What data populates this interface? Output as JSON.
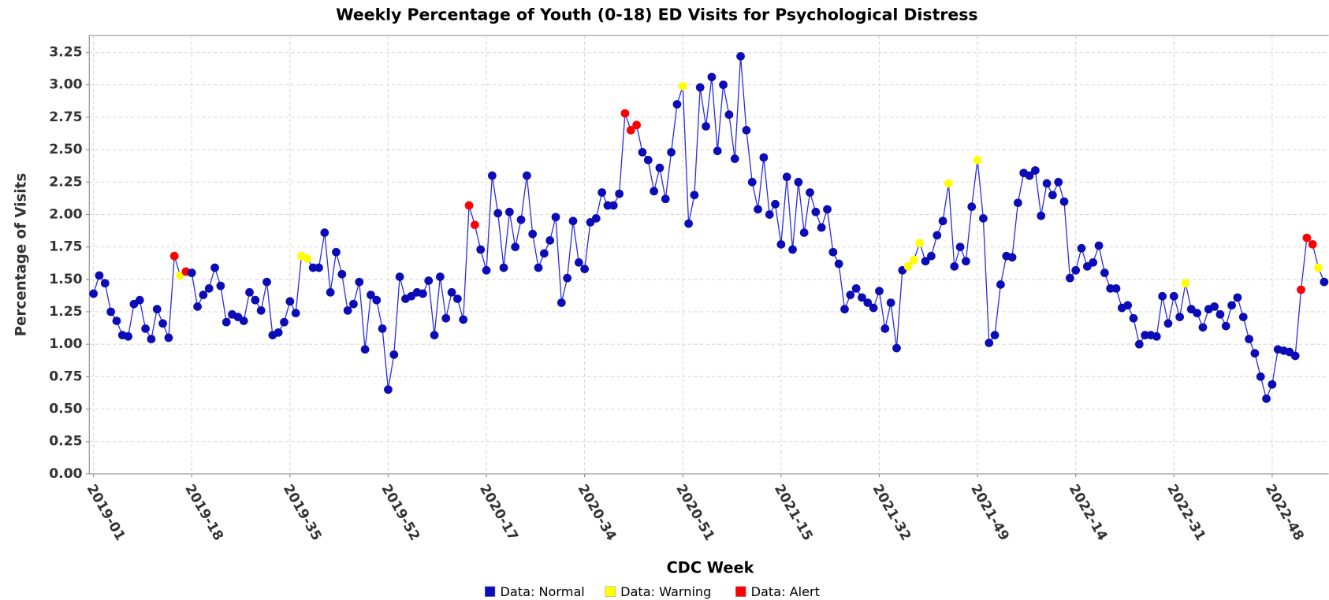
{
  "chart_data": {
    "type": "line",
    "title": "Weekly Percentage of Youth (0-18) ED Visits for Psychological Distress",
    "x_label": "CDC Week",
    "y_label": "Percentage of Visits",
    "categories": [
      "2019-01",
      null,
      null,
      null,
      null,
      null,
      null,
      null,
      null,
      null,
      null,
      null,
      null,
      null,
      null,
      null,
      null,
      "2019-18",
      null,
      null,
      null,
      null,
      null,
      null,
      null,
      null,
      null,
      null,
      null,
      null,
      null,
      null,
      null,
      null,
      "2019-35",
      null,
      null,
      null,
      null,
      null,
      null,
      null,
      null,
      null,
      null,
      null,
      null,
      null,
      null,
      null,
      null,
      "2019-52",
      null,
      null,
      null,
      null,
      null,
      null,
      null,
      null,
      null,
      null,
      null,
      null,
      null,
      null,
      null,
      null,
      "2020-17",
      null,
      null,
      null,
      null,
      null,
      null,
      null,
      null,
      null,
      null,
      null,
      null,
      null,
      null,
      null,
      null,
      "2020-34",
      null,
      null,
      null,
      null,
      null,
      null,
      null,
      null,
      null,
      null,
      null,
      null,
      null,
      null,
      null,
      null,
      "2020-51",
      null,
      null,
      null,
      null,
      null,
      null,
      null,
      null,
      null,
      null,
      null,
      null,
      null,
      null,
      null,
      null,
      "2021-15",
      null,
      null,
      null,
      null,
      null,
      null,
      null,
      null,
      null,
      null,
      null,
      null,
      null,
      null,
      null,
      null,
      "2021-32",
      null,
      null,
      null,
      null,
      null,
      null,
      null,
      null,
      null,
      null,
      null,
      null,
      null,
      null,
      null,
      null,
      "2021-49",
      null,
      null,
      null,
      null,
      null,
      null,
      null,
      null,
      null,
      null,
      null,
      null,
      null,
      null,
      null,
      null,
      "2022-14",
      null,
      null,
      null,
      null,
      null,
      null,
      null,
      null,
      null,
      null,
      null,
      null,
      null,
      null,
      null,
      null,
      "2022-31",
      null,
      null,
      null,
      null,
      null,
      null,
      null,
      null,
      null,
      null,
      null,
      null,
      null,
      null,
      null,
      null,
      "2022-48",
      null,
      null,
      null,
      null,
      null,
      null,
      null,
      null,
      null
    ],
    "values": [
      1.39,
      1.53,
      1.47,
      1.25,
      1.18,
      1.07,
      1.06,
      1.31,
      1.34,
      1.12,
      1.04,
      1.27,
      1.16,
      1.05,
      1.68,
      1.53,
      1.56,
      1.55,
      1.29,
      1.38,
      1.43,
      1.59,
      1.45,
      1.17,
      1.23,
      1.21,
      1.18,
      1.4,
      1.34,
      1.26,
      1.48,
      1.07,
      1.09,
      1.17,
      1.33,
      1.24,
      1.68,
      1.66,
      1.59,
      1.59,
      1.86,
      1.4,
      1.71,
      1.54,
      1.26,
      1.31,
      1.48,
      0.96,
      1.38,
      1.34,
      1.12,
      0.65,
      0.92,
      1.52,
      1.35,
      1.37,
      1.4,
      1.39,
      1.49,
      1.07,
      1.52,
      1.2,
      1.4,
      1.35,
      1.19,
      2.07,
      1.92,
      1.73,
      1.57,
      2.3,
      2.01,
      1.59,
      2.02,
      1.75,
      1.96,
      2.3,
      1.85,
      1.59,
      1.7,
      1.8,
      1.98,
      1.32,
      1.51,
      1.95,
      1.63,
      1.58,
      1.94,
      1.97,
      2.17,
      2.07,
      2.07,
      2.16,
      2.78,
      2.65,
      2.69,
      2.48,
      2.42,
      2.18,
      2.36,
      2.12,
      2.48,
      2.85,
      2.99,
      1.93,
      2.15,
      2.98,
      2.68,
      3.06,
      2.49,
      3.0,
      2.77,
      2.43,
      3.22,
      2.65,
      2.25,
      2.04,
      2.44,
      2.0,
      2.08,
      1.77,
      2.29,
      1.73,
      2.25,
      1.86,
      2.17,
      2.02,
      1.9,
      2.04,
      1.71,
      1.62,
      1.27,
      1.38,
      1.43,
      1.36,
      1.32,
      1.28,
      1.41,
      1.12,
      1.32,
      0.97,
      1.57,
      1.6,
      1.65,
      1.78,
      1.64,
      1.68,
      1.84,
      1.95,
      2.24,
      1.6,
      1.75,
      1.64,
      2.06,
      2.42,
      1.97,
      1.01,
      1.07,
      1.46,
      1.68,
      1.67,
      2.09,
      2.32,
      2.3,
      2.34,
      1.99,
      2.24,
      2.15,
      2.25,
      2.1,
      1.51,
      1.57,
      1.74,
      1.6,
      1.63,
      1.76,
      1.55,
      1.43,
      1.43,
      1.28,
      1.3,
      1.2,
      1.0,
      1.07,
      1.07,
      1.06,
      1.37,
      1.16,
      1.37,
      1.21,
      1.47,
      1.27,
      1.24,
      1.13,
      1.27,
      1.29,
      1.23,
      1.14,
      1.3,
      1.36,
      1.21,
      1.04,
      0.93,
      0.75,
      0.58,
      0.69,
      0.96,
      0.95,
      0.94,
      0.91,
      1.42,
      1.82,
      1.77,
      1.59,
      1.48
    ],
    "line_color": "#2a2ae6",
    "point_classes": [
      {
        "name": "Data: Normal",
        "color": "#0b0bb8"
      },
      {
        "name": "Data: Warning",
        "color": "#ffff00"
      },
      {
        "name": "Data: Alert",
        "color": "#ff0000"
      }
    ],
    "point_class": [
      0,
      0,
      0,
      0,
      0,
      0,
      0,
      0,
      0,
      0,
      0,
      0,
      0,
      0,
      2,
      1,
      2,
      0,
      0,
      0,
      0,
      0,
      0,
      0,
      0,
      0,
      0,
      0,
      0,
      0,
      0,
      0,
      0,
      0,
      0,
      0,
      1,
      1,
      0,
      0,
      0,
      0,
      0,
      0,
      0,
      0,
      0,
      0,
      0,
      0,
      0,
      0,
      0,
      0,
      0,
      0,
      0,
      0,
      0,
      0,
      0,
      0,
      0,
      0,
      0,
      2,
      2,
      0,
      0,
      0,
      0,
      0,
      0,
      0,
      0,
      0,
      0,
      0,
      0,
      0,
      0,
      0,
      0,
      0,
      0,
      0,
      0,
      0,
      0,
      0,
      0,
      0,
      2,
      2,
      2,
      0,
      0,
      0,
      0,
      0,
      0,
      0,
      1,
      0,
      0,
      0,
      0,
      0,
      0,
      0,
      0,
      0,
      0,
      0,
      0,
      0,
      0,
      0,
      0,
      0,
      0,
      0,
      0,
      0,
      0,
      0,
      0,
      0,
      0,
      0,
      0,
      0,
      0,
      0,
      0,
      0,
      0,
      0,
      0,
      0,
      0,
      1,
      1,
      1,
      0,
      0,
      0,
      0,
      1,
      0,
      0,
      0,
      0,
      1,
      0,
      0,
      0,
      0,
      0,
      0,
      0,
      0,
      0,
      0,
      0,
      0,
      0,
      0,
      0,
      0,
      0,
      0,
      0,
      0,
      0,
      0,
      0,
      0,
      0,
      0,
      0,
      0,
      0,
      0,
      0,
      0,
      0,
      0,
      0,
      1,
      0,
      0,
      0,
      0,
      0,
      0,
      0,
      0,
      0,
      0,
      0,
      0,
      0,
      0,
      0,
      0,
      0,
      0,
      0,
      2,
      2,
      2,
      1,
      0
    ],
    "ylim": [
      0,
      3.38
    ],
    "yticks": [
      {
        "value": 0,
        "label": "0.00"
      },
      {
        "value": 0.25,
        "label": "0.25"
      },
      {
        "value": 0.5,
        "label": "0.50"
      },
      {
        "value": 0.75,
        "label": "0.75"
      },
      {
        "value": 1,
        "label": "1.00"
      },
      {
        "value": 1.25,
        "label": "1.25"
      },
      {
        "value": 1.5,
        "label": "1.50"
      },
      {
        "value": 1.75,
        "label": "1.75"
      },
      {
        "value": 2,
        "label": "2.00"
      },
      {
        "value": 2.25,
        "label": "2.25"
      },
      {
        "value": 2.5,
        "label": "2.50"
      },
      {
        "value": 2.75,
        "label": "2.75"
      },
      {
        "value": 3,
        "label": "3.00"
      },
      {
        "value": 3.25,
        "label": "3.25"
      }
    ],
    "grid": true
  }
}
